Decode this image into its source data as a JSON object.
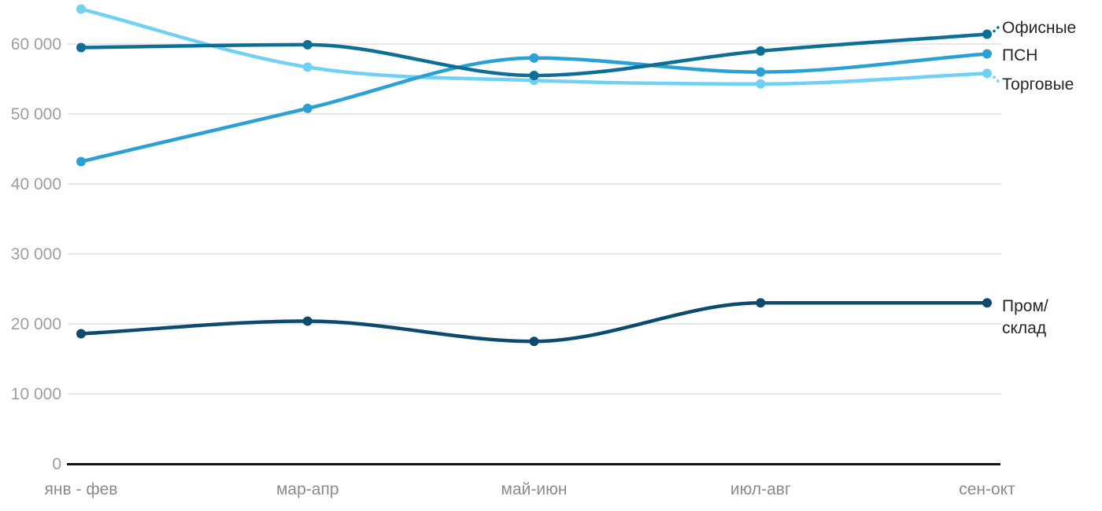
{
  "chart_data": {
    "type": "line",
    "categories": [
      "янв - фев",
      "мар-апр",
      "май-июн",
      "июл-авг",
      "сен-окт"
    ],
    "series": [
      {
        "name": "Офисные",
        "color": "#0d6e96",
        "values": [
          59500,
          59900,
          55500,
          59000,
          61400
        ]
      },
      {
        "name": "ПСН",
        "color": "#2aa0d4",
        "values": [
          43200,
          50800,
          58000,
          56000,
          58600
        ]
      },
      {
        "name": "Торговые",
        "color": "#70d1f4",
        "values": [
          65000,
          56700,
          54800,
          54300,
          55800
        ]
      },
      {
        "name": "Пром/склад",
        "color": "#0d4a70",
        "values": [
          18600,
          20400,
          17500,
          23000,
          23000
        ]
      }
    ],
    "title": "",
    "xlabel": "",
    "ylabel": "",
    "ylim": [
      0,
      66000
    ],
    "yticks": [
      0,
      10000,
      20000,
      30000,
      40000,
      50000,
      60000
    ],
    "ytick_labels": [
      "0",
      "10 000",
      "20 000",
      "30 000",
      "40 000",
      "50 000",
      "60 000"
    ],
    "grid": true,
    "legend_position": "labels-at-line-ends-right"
  },
  "colors": {
    "grid": "#e8e8e8",
    "axis": "#131313",
    "ytick_text": "#9e9e9e",
    "xtick_text": "#8b8b8b",
    "label_text": "#262626"
  }
}
